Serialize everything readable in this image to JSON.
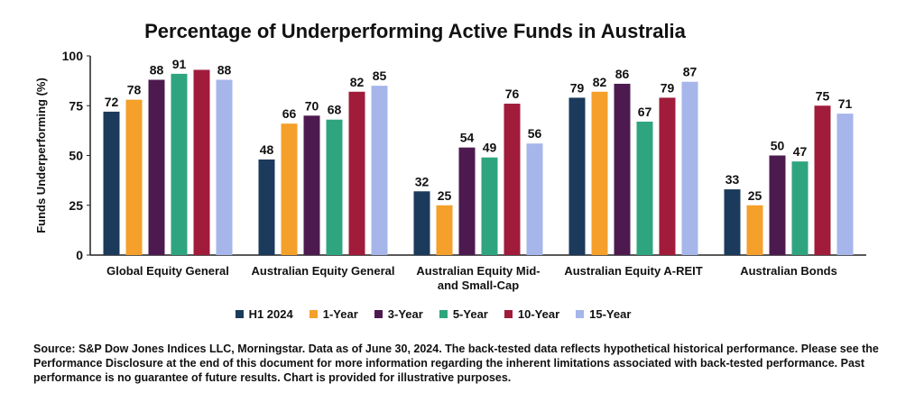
{
  "chart_data": {
    "type": "bar",
    "title": "Percentage of Underperforming Active Funds in Australia",
    "ylabel": "Funds Underperforming (%)",
    "xlabel": "",
    "ylim": [
      0,
      100
    ],
    "yticks": [
      0,
      25,
      50,
      75,
      100
    ],
    "grid": false,
    "legend_position": "bottom",
    "categories": [
      [
        "Global Equity General"
      ],
      [
        "Australian Equity General"
      ],
      [
        "Australian Equity Mid-",
        "and Small-Cap"
      ],
      [
        "Australian Equity A-REIT"
      ],
      [
        "Australian Bonds"
      ]
    ],
    "series": [
      {
        "name": "H1 2024",
        "color": "#1b3a5c",
        "values": [
          72,
          48,
          32,
          79,
          33
        ]
      },
      {
        "name": "1-Year",
        "color": "#f4a02a",
        "values": [
          78,
          66,
          25,
          82,
          25
        ]
      },
      {
        "name": "3-Year",
        "color": "#4d1a4f",
        "values": [
          88,
          70,
          54,
          86,
          50
        ]
      },
      {
        "name": "5-Year",
        "color": "#2ea57e",
        "values": [
          91,
          68,
          49,
          67,
          47
        ]
      },
      {
        "name": "10-Year",
        "color": "#a01c3a",
        "values": [
          93,
          82,
          76,
          79,
          75
        ]
      },
      {
        "name": "15-Year",
        "color": "#a6b6ea",
        "values": [
          88,
          85,
          56,
          87,
          71
        ]
      }
    ],
    "data_labels": [
      [
        "72",
        "78",
        "88",
        "91",
        "",
        "88"
      ],
      [
        "48",
        "66",
        "70",
        "68",
        "82",
        "85"
      ],
      [
        "32",
        "25",
        "54",
        "49",
        "76",
        "56"
      ],
      [
        "79",
        "82",
        "86",
        "67",
        "79",
        "87"
      ],
      [
        "33",
        "25",
        "50",
        "47",
        "75",
        "71"
      ]
    ]
  },
  "footnote": "Source: S&P Dow Jones Indices LLC, Morningstar.  Data as of June 30, 2024. The back-tested data reflects hypothetical historical performance.  Please see the Performance Disclosure at the end of this document for more information regarding the inherent limitations associated with back-tested performance.  Past performance is no guarantee of future results.  Chart is provided for illustrative purposes."
}
